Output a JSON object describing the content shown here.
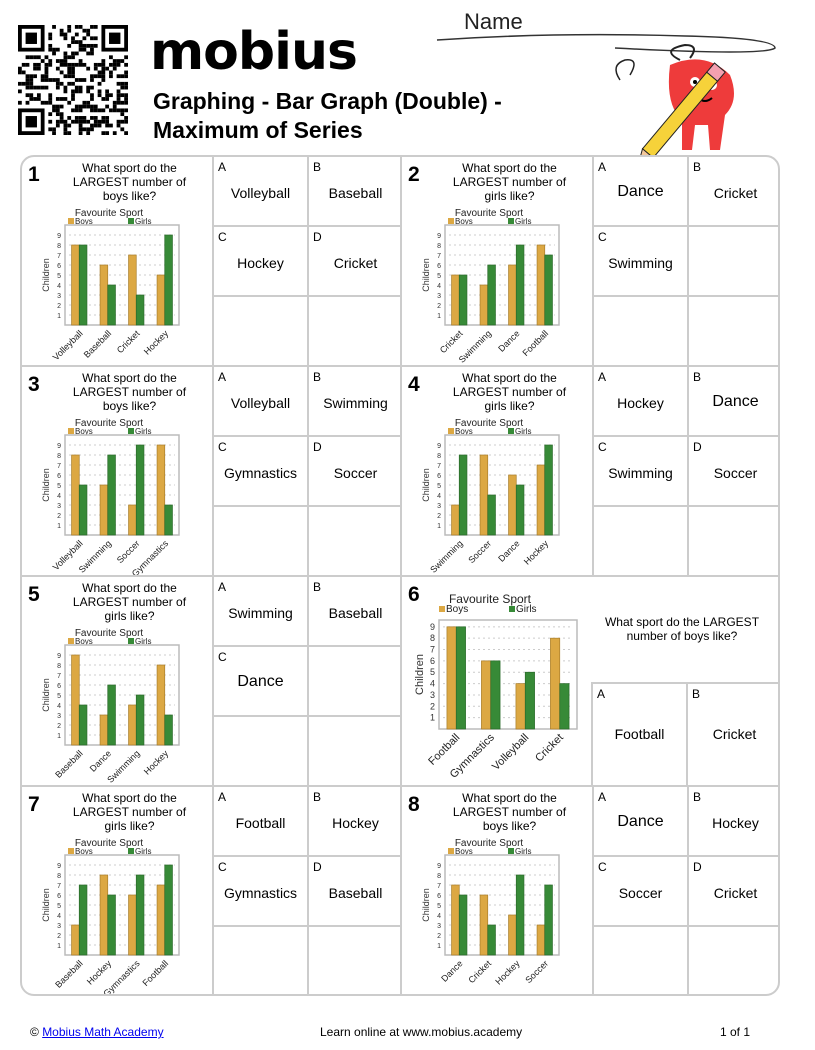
{
  "header": {
    "brand": "mobius",
    "title_line1": "Graphing - Bar Graph (Double) -",
    "title_line2": "Maximum of Series",
    "name_label": "Name"
  },
  "colors": {
    "boys": "#dca843",
    "girls": "#378a37",
    "grid": "#cccccc"
  },
  "chart_common": {
    "title": "Favourite Sport",
    "ylabel": "Children",
    "legend": [
      "Boys",
      "Girls"
    ],
    "yticks": [
      1,
      2,
      3,
      4,
      5,
      6,
      7,
      8,
      9
    ]
  },
  "problems": [
    {
      "number": "1",
      "question": "What sport do the LARGEST number of boys like?",
      "answers": [
        {
          "letter": "A",
          "text": "Volleyball"
        },
        {
          "letter": "B",
          "text": "Baseball"
        },
        {
          "letter": "C",
          "text": "Hockey"
        },
        {
          "letter": "D",
          "text": "Cricket"
        }
      ]
    },
    {
      "number": "2",
      "question": "What sport do the LARGEST number of girls like?",
      "answers": [
        {
          "letter": "A",
          "text": "Dance"
        },
        {
          "letter": "B",
          "text": "Cricket"
        },
        {
          "letter": "C",
          "text": "Swimming"
        }
      ]
    },
    {
      "number": "3",
      "question": "What sport do the LARGEST number of boys like?",
      "answers": [
        {
          "letter": "A",
          "text": "Volleyball"
        },
        {
          "letter": "B",
          "text": "Swimming"
        },
        {
          "letter": "C",
          "text": "Gymnastics"
        },
        {
          "letter": "D",
          "text": "Soccer"
        }
      ]
    },
    {
      "number": "4",
      "question": "What sport do the LARGEST number of girls like?",
      "answers": [
        {
          "letter": "A",
          "text": "Hockey"
        },
        {
          "letter": "B",
          "text": "Dance"
        },
        {
          "letter": "C",
          "text": "Swimming"
        },
        {
          "letter": "D",
          "text": "Soccer"
        }
      ]
    },
    {
      "number": "5",
      "question": "What sport do the LARGEST number of girls like?",
      "answers": [
        {
          "letter": "A",
          "text": "Swimming"
        },
        {
          "letter": "B",
          "text": "Baseball"
        },
        {
          "letter": "C",
          "text": "Dance"
        }
      ]
    },
    {
      "number": "6",
      "question": "What sport do the LARGEST number of boys like?",
      "answers": [
        {
          "letter": "A",
          "text": "Football"
        },
        {
          "letter": "B",
          "text": "Cricket"
        }
      ]
    },
    {
      "number": "7",
      "question": "What sport do the LARGEST number of girls like?",
      "answers": [
        {
          "letter": "A",
          "text": "Football"
        },
        {
          "letter": "B",
          "text": "Hockey"
        },
        {
          "letter": "C",
          "text": "Gymnastics"
        },
        {
          "letter": "D",
          "text": "Baseball"
        }
      ]
    },
    {
      "number": "8",
      "question": "What sport do the LARGEST number of boys like?",
      "answers": [
        {
          "letter": "A",
          "text": "Dance"
        },
        {
          "letter": "B",
          "text": "Hockey"
        },
        {
          "letter": "C",
          "text": "Soccer"
        },
        {
          "letter": "D",
          "text": "Cricket"
        }
      ]
    }
  ],
  "chart_data": [
    {
      "type": "bar",
      "title": "Favourite Sport",
      "ylabel": "Children",
      "ylim": [
        0,
        10
      ],
      "grid": true,
      "legend": "top",
      "categories": [
        "Volleyball",
        "Baseball",
        "Cricket",
        "Hockey"
      ],
      "series": [
        {
          "name": "Boys",
          "values": [
            8,
            6,
            7,
            5
          ]
        },
        {
          "name": "Girls",
          "values": [
            8,
            4,
            3,
            9
          ]
        }
      ]
    },
    {
      "type": "bar",
      "title": "Favourite Sport",
      "ylabel": "Children",
      "ylim": [
        0,
        10
      ],
      "grid": true,
      "legend": "top",
      "categories": [
        "Cricket",
        "Swimming",
        "Dance",
        "Football"
      ],
      "series": [
        {
          "name": "Boys",
          "values": [
            5,
            4,
            6,
            8
          ]
        },
        {
          "name": "Girls",
          "values": [
            5,
            6,
            8,
            7
          ]
        }
      ]
    },
    {
      "type": "bar",
      "title": "Favourite Sport",
      "ylabel": "Children",
      "ylim": [
        0,
        10
      ],
      "grid": true,
      "legend": "top",
      "categories": [
        "Volleyball",
        "Swimming",
        "Soccer",
        "Gymnastics"
      ],
      "series": [
        {
          "name": "Boys",
          "values": [
            8,
            5,
            3,
            9
          ]
        },
        {
          "name": "Girls",
          "values": [
            5,
            8,
            9,
            3
          ]
        }
      ]
    },
    {
      "type": "bar",
      "title": "Favourite Sport",
      "ylabel": "Children",
      "ylim": [
        0,
        10
      ],
      "grid": true,
      "legend": "top",
      "categories": [
        "Swimming",
        "Soccer",
        "Dance",
        "Hockey"
      ],
      "series": [
        {
          "name": "Boys",
          "values": [
            3,
            8,
            6,
            7
          ]
        },
        {
          "name": "Girls",
          "values": [
            8,
            4,
            5,
            9
          ]
        }
      ]
    },
    {
      "type": "bar",
      "title": "Favourite Sport",
      "ylabel": "Children",
      "ylim": [
        0,
        10
      ],
      "grid": true,
      "legend": "top",
      "categories": [
        "Baseball",
        "Dance",
        "Swimming",
        "Hockey"
      ],
      "series": [
        {
          "name": "Boys",
          "values": [
            9,
            3,
            4,
            8
          ]
        },
        {
          "name": "Girls",
          "values": [
            4,
            6,
            5,
            3
          ]
        }
      ]
    },
    {
      "type": "bar",
      "title": "Favourite Sport",
      "ylabel": "Children",
      "ylim": [
        0,
        10
      ],
      "grid": true,
      "legend": "top",
      "categories": [
        "Football",
        "Gymnastics",
        "Volleyball",
        "Cricket"
      ],
      "series": [
        {
          "name": "Boys",
          "values": [
            9,
            6,
            4,
            8
          ]
        },
        {
          "name": "Girls",
          "values": [
            9,
            6,
            5,
            4
          ]
        }
      ]
    },
    {
      "type": "bar",
      "title": "Favourite Sport",
      "ylabel": "Children",
      "ylim": [
        0,
        10
      ],
      "grid": true,
      "legend": "top",
      "categories": [
        "Baseball",
        "Hockey",
        "Gymnastics",
        "Football"
      ],
      "series": [
        {
          "name": "Boys",
          "values": [
            3,
            8,
            6,
            7
          ]
        },
        {
          "name": "Girls",
          "values": [
            7,
            6,
            8,
            9
          ]
        }
      ]
    },
    {
      "type": "bar",
      "title": "Favourite Sport",
      "ylabel": "Children",
      "ylim": [
        0,
        10
      ],
      "grid": true,
      "legend": "top",
      "categories": [
        "Dance",
        "Cricket",
        "Hockey",
        "Soccer"
      ],
      "series": [
        {
          "name": "Boys",
          "values": [
            7,
            6,
            4,
            3
          ]
        },
        {
          "name": "Girls",
          "values": [
            6,
            3,
            8,
            7
          ]
        }
      ]
    }
  ],
  "footer": {
    "copyright_symbol": "©",
    "copyright_link": "Mobius Math Academy",
    "center": "Learn online at www.mobius.academy",
    "page": "1 of 1"
  }
}
